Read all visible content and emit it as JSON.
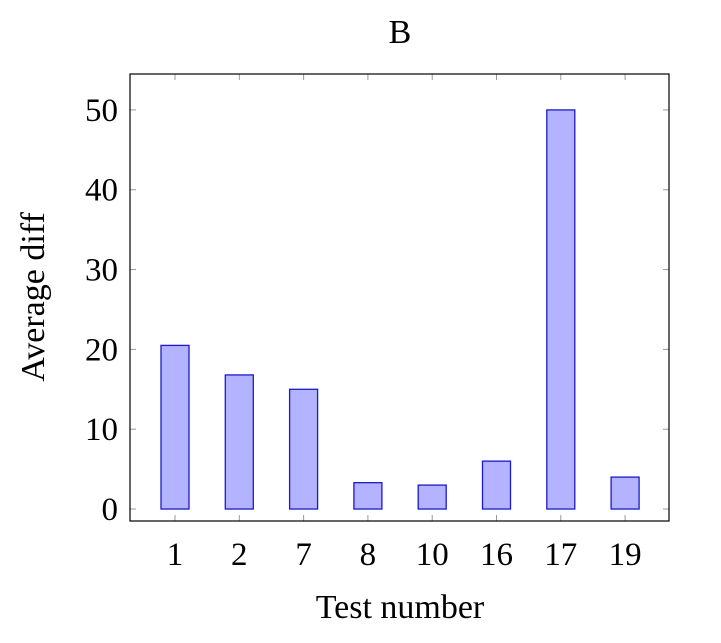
{
  "chart_data": {
    "type": "bar",
    "title": "B",
    "xlabel": "Test number",
    "ylabel": "Average diff",
    "categories": [
      "1",
      "2",
      "7",
      "8",
      "10",
      "16",
      "17",
      "19"
    ],
    "values": [
      20.5,
      16.8,
      15.0,
      3.3,
      3.0,
      6.0,
      50.0,
      4.0
    ],
    "ylim": [
      -1.5,
      54.5
    ],
    "yticks": [
      0,
      10,
      20,
      30,
      40,
      50
    ],
    "grid": false,
    "legend": "none",
    "colors": {
      "bar_fill": "#b3b3ff",
      "bar_stroke": "#1a1acc",
      "axis": "#000000",
      "tick": "#999999"
    }
  }
}
